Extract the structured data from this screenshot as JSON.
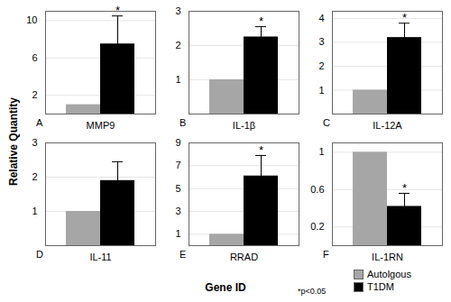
{
  "figure": {
    "y_label": "Relative Quantity",
    "x_label": "Gene ID",
    "note": "*p<0.05",
    "legend": "bottom right"
  },
  "chart_data": [
    {
      "type": "bar",
      "panel": "A",
      "categories": [
        "MMP9"
      ],
      "ylim": [
        0,
        11
      ],
      "yticks": [
        2,
        6,
        10
      ],
      "grid": true,
      "series": [
        {
          "name": "Autolgous",
          "color": "#a6a6a6",
          "values": [
            1
          ],
          "errors": [
            null
          ],
          "annotations": [
            null
          ]
        },
        {
          "name": "T1DM",
          "color": "#000000",
          "values": [
            7.5
          ],
          "errors": [
            3
          ],
          "annotations": [
            "*"
          ]
        }
      ]
    },
    {
      "type": "bar",
      "panel": "B",
      "categories": [
        "IL-1β"
      ],
      "ylim": [
        0,
        3
      ],
      "yticks": [
        1,
        2,
        3
      ],
      "grid": true,
      "series": [
        {
          "name": "Autolgous",
          "color": "#a6a6a6",
          "values": [
            1
          ],
          "errors": [
            null
          ],
          "annotations": [
            null
          ]
        },
        {
          "name": "T1DM",
          "color": "#000000",
          "values": [
            2.25
          ],
          "errors": [
            0.3
          ],
          "annotations": [
            "*"
          ]
        }
      ]
    },
    {
      "type": "bar",
      "panel": "C",
      "categories": [
        "IL-12A"
      ],
      "ylim": [
        0,
        4.3
      ],
      "yticks": [
        1,
        2,
        3,
        4
      ],
      "grid": true,
      "series": [
        {
          "name": "Autolgous",
          "color": "#a6a6a6",
          "values": [
            1
          ],
          "errors": [
            null
          ],
          "annotations": [
            null
          ]
        },
        {
          "name": "T1DM",
          "color": "#000000",
          "values": [
            3.2
          ],
          "errors": [
            0.6
          ],
          "annotations": [
            "*"
          ]
        }
      ]
    },
    {
      "type": "bar",
      "panel": "D",
      "categories": [
        "IL-11"
      ],
      "ylim": [
        0,
        3
      ],
      "yticks": [
        1,
        2,
        3
      ],
      "grid": true,
      "series": [
        {
          "name": "Autolgous",
          "color": "#a6a6a6",
          "values": [
            1
          ],
          "errors": [
            null
          ],
          "annotations": [
            null
          ]
        },
        {
          "name": "T1DM",
          "color": "#000000",
          "values": [
            1.9
          ],
          "errors": [
            0.55
          ],
          "annotations": [
            null
          ]
        }
      ]
    },
    {
      "type": "bar",
      "panel": "E",
      "categories": [
        "RRAD"
      ],
      "ylim": [
        0,
        9
      ],
      "yticks": [
        1,
        3,
        5,
        7,
        9
      ],
      "grid": true,
      "series": [
        {
          "name": "Autolgous",
          "color": "#a6a6a6",
          "values": [
            1
          ],
          "errors": [
            null
          ],
          "annotations": [
            null
          ]
        },
        {
          "name": "T1DM",
          "color": "#000000",
          "values": [
            6.1
          ],
          "errors": [
            1.8
          ],
          "annotations": [
            "*"
          ]
        }
      ]
    },
    {
      "type": "bar",
      "panel": "F",
      "categories": [
        "IL-1RN"
      ],
      "ylim": [
        0,
        1.1
      ],
      "yticks": [
        0.2,
        0.6,
        1
      ],
      "grid": true,
      "series": [
        {
          "name": "Autolgous",
          "color": "#a6a6a6",
          "values": [
            1
          ],
          "errors": [
            null
          ],
          "annotations": [
            null
          ]
        },
        {
          "name": "T1DM",
          "color": "#000000",
          "values": [
            0.42
          ],
          "errors": [
            0.14
          ],
          "annotations": [
            "*"
          ]
        }
      ]
    }
  ]
}
